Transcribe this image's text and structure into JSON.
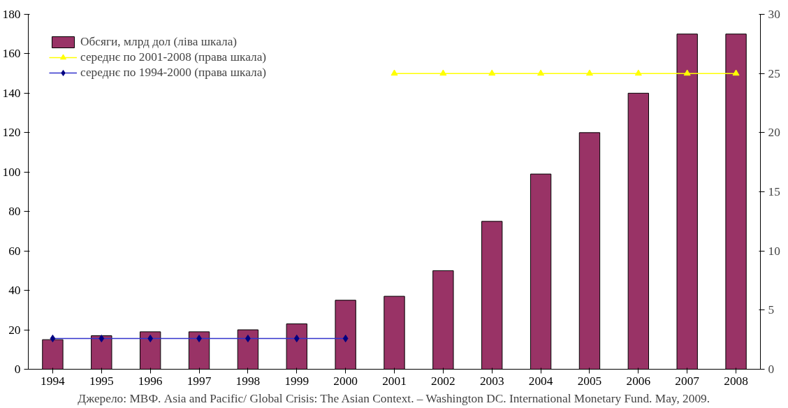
{
  "chart_data": {
    "type": "bar",
    "categories": [
      "1994",
      "1995",
      "1996",
      "1997",
      "1998",
      "1999",
      "2000",
      "2001",
      "2002",
      "2003",
      "2004",
      "2005",
      "2006",
      "2007",
      "2008"
    ],
    "series": [
      {
        "name": "Обсяги, млрд дол (ліва шкала)",
        "color": "#993366",
        "values": [
          15,
          17,
          19,
          19,
          20,
          23,
          35,
          37,
          50,
          75,
          99,
          120,
          140,
          170,
          170
        ]
      },
      {
        "name": "середнє по 2001-2008 (права шкала)",
        "type": "line",
        "axis": "y2",
        "marker": "triangle",
        "color": "#ffff00",
        "values": [
          null,
          null,
          null,
          null,
          null,
          null,
          null,
          25,
          25,
          25,
          25,
          25,
          25,
          25,
          25
        ]
      },
      {
        "name": "середнє по 1994-2000 (права шкала)",
        "type": "line",
        "axis": "y2",
        "marker": "diamond",
        "color": "#000080",
        "values": [
          2.6,
          2.6,
          2.6,
          2.6,
          2.6,
          2.6,
          2.6,
          null,
          null,
          null,
          null,
          null,
          null,
          null,
          null
        ]
      }
    ],
    "ylim": [
      0,
      180
    ],
    "yticks": [
      0,
      20,
      40,
      60,
      80,
      100,
      120,
      140,
      160,
      180
    ],
    "y2lim": [
      0,
      30
    ],
    "y2ticks": [
      0,
      5,
      10,
      15,
      20,
      25,
      30
    ],
    "grid": false,
    "legend": "top left",
    "annotations": [
      "Джерело: МВФ. Asia and Pacific/ Global Crisis: The Asian Context. – Washington DC. International Monetary Fund. May, 2009."
    ]
  }
}
